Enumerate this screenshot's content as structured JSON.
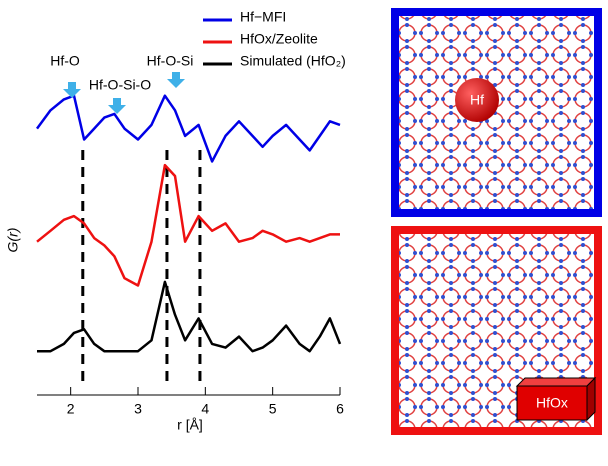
{
  "chart_data": {
    "type": "line",
    "ylabel": "G(r)",
    "xlabel": "r [Å]",
    "x": [
      1.5,
      1.7,
      1.9,
      2.05,
      2.2,
      2.35,
      2.5,
      2.65,
      2.8,
      3.0,
      3.2,
      3.4,
      3.55,
      3.7,
      3.9,
      4.1,
      4.3,
      4.5,
      4.7,
      4.85,
      5.0,
      5.2,
      5.4,
      5.55,
      5.7,
      5.85,
      6.0
    ],
    "series": [
      {
        "name": "Hf−MFI",
        "color": "#0000e6",
        "values": [
          7.3,
          7.8,
          8.1,
          8.2,
          7.0,
          7.3,
          7.6,
          7.7,
          7.3,
          7.0,
          7.4,
          8.2,
          7.8,
          7.1,
          7.4,
          6.4,
          7.1,
          7.5,
          7.1,
          6.8,
          7.1,
          7.4,
          7.0,
          6.7,
          7.1,
          7.5,
          7.4
        ]
      },
      {
        "name": "HfOx/Zeolite",
        "color": "#ee1111",
        "values": [
          4.2,
          4.5,
          4.8,
          4.9,
          4.7,
          4.3,
          4.1,
          3.8,
          3.2,
          3.0,
          4.2,
          6.3,
          6.0,
          4.2,
          4.9,
          4.5,
          4.7,
          4.2,
          4.3,
          4.5,
          4.4,
          4.2,
          4.3,
          4.2,
          4.3,
          4.4,
          4.4
        ]
      },
      {
        "name": "Simulated (HfO₂)",
        "color": "#000000",
        "values": [
          1.2,
          1.2,
          1.4,
          1.7,
          1.8,
          1.4,
          1.2,
          1.2,
          1.2,
          1.2,
          1.5,
          3.1,
          2.2,
          1.5,
          2.1,
          1.4,
          1.3,
          1.6,
          1.2,
          1.3,
          1.5,
          1.9,
          1.4,
          1.2,
          1.6,
          2.1,
          1.4
        ]
      }
    ],
    "reference_lines": [
      2.18,
      3.43,
      3.92
    ],
    "annotations": [
      "Hf-O",
      "Hf-O-Si-O",
      "Hf-O-Si"
    ],
    "xlim": [
      1.5,
      6
    ],
    "xticks": [
      2,
      3,
      4,
      5,
      6
    ],
    "ylim": [
      0,
      10
    ],
    "legend": "top-right"
  },
  "images": [
    {
      "label": "Hf",
      "frame_color": "#0000e6"
    },
    {
      "label": "HfOx",
      "frame_color": "#ee1111"
    }
  ]
}
